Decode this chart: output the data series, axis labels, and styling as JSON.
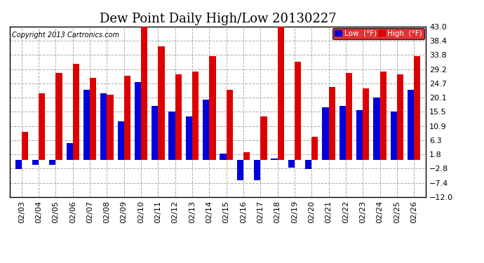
{
  "title": "Dew Point Daily High/Low 20130227",
  "copyright": "Copyright 2013 Cartronics.com",
  "legend_low": "Low  (°F)",
  "legend_high": "High  (°F)",
  "dates": [
    "02/03",
    "02/04",
    "02/05",
    "02/06",
    "02/07",
    "02/08",
    "02/09",
    "02/10",
    "02/11",
    "02/12",
    "02/13",
    "02/14",
    "02/15",
    "02/16",
    "02/17",
    "02/18",
    "02/19",
    "02/20",
    "02/21",
    "02/22",
    "02/23",
    "02/24",
    "02/25",
    "02/26"
  ],
  "low": [
    -3.0,
    -1.5,
    -1.5,
    5.5,
    22.5,
    21.5,
    12.5,
    25.0,
    17.5,
    15.5,
    14.0,
    19.5,
    2.0,
    -6.5,
    -6.5,
    0.5,
    -2.5,
    -3.0,
    17.0,
    17.5,
    16.0,
    20.0,
    15.5,
    22.5
  ],
  "high": [
    9.0,
    21.5,
    28.0,
    31.0,
    26.5,
    21.0,
    27.0,
    43.5,
    36.5,
    27.5,
    28.5,
    33.5,
    22.5,
    2.5,
    14.0,
    43.5,
    31.5,
    7.5,
    23.5,
    28.0,
    23.0,
    28.5,
    27.5,
    33.5
  ],
  "ylim": [
    -12.0,
    43.0
  ],
  "yticks": [
    43.0,
    38.4,
    33.8,
    29.2,
    24.7,
    20.1,
    15.5,
    10.9,
    6.3,
    1.8,
    -2.8,
    -7.4,
    -12.0
  ],
  "background_color": "#ffffff",
  "grid_color": "#aaaaaa",
  "low_color": "#0000dd",
  "high_color": "#dd0000",
  "bar_width": 0.38,
  "title_fontsize": 13,
  "tick_fontsize": 8
}
